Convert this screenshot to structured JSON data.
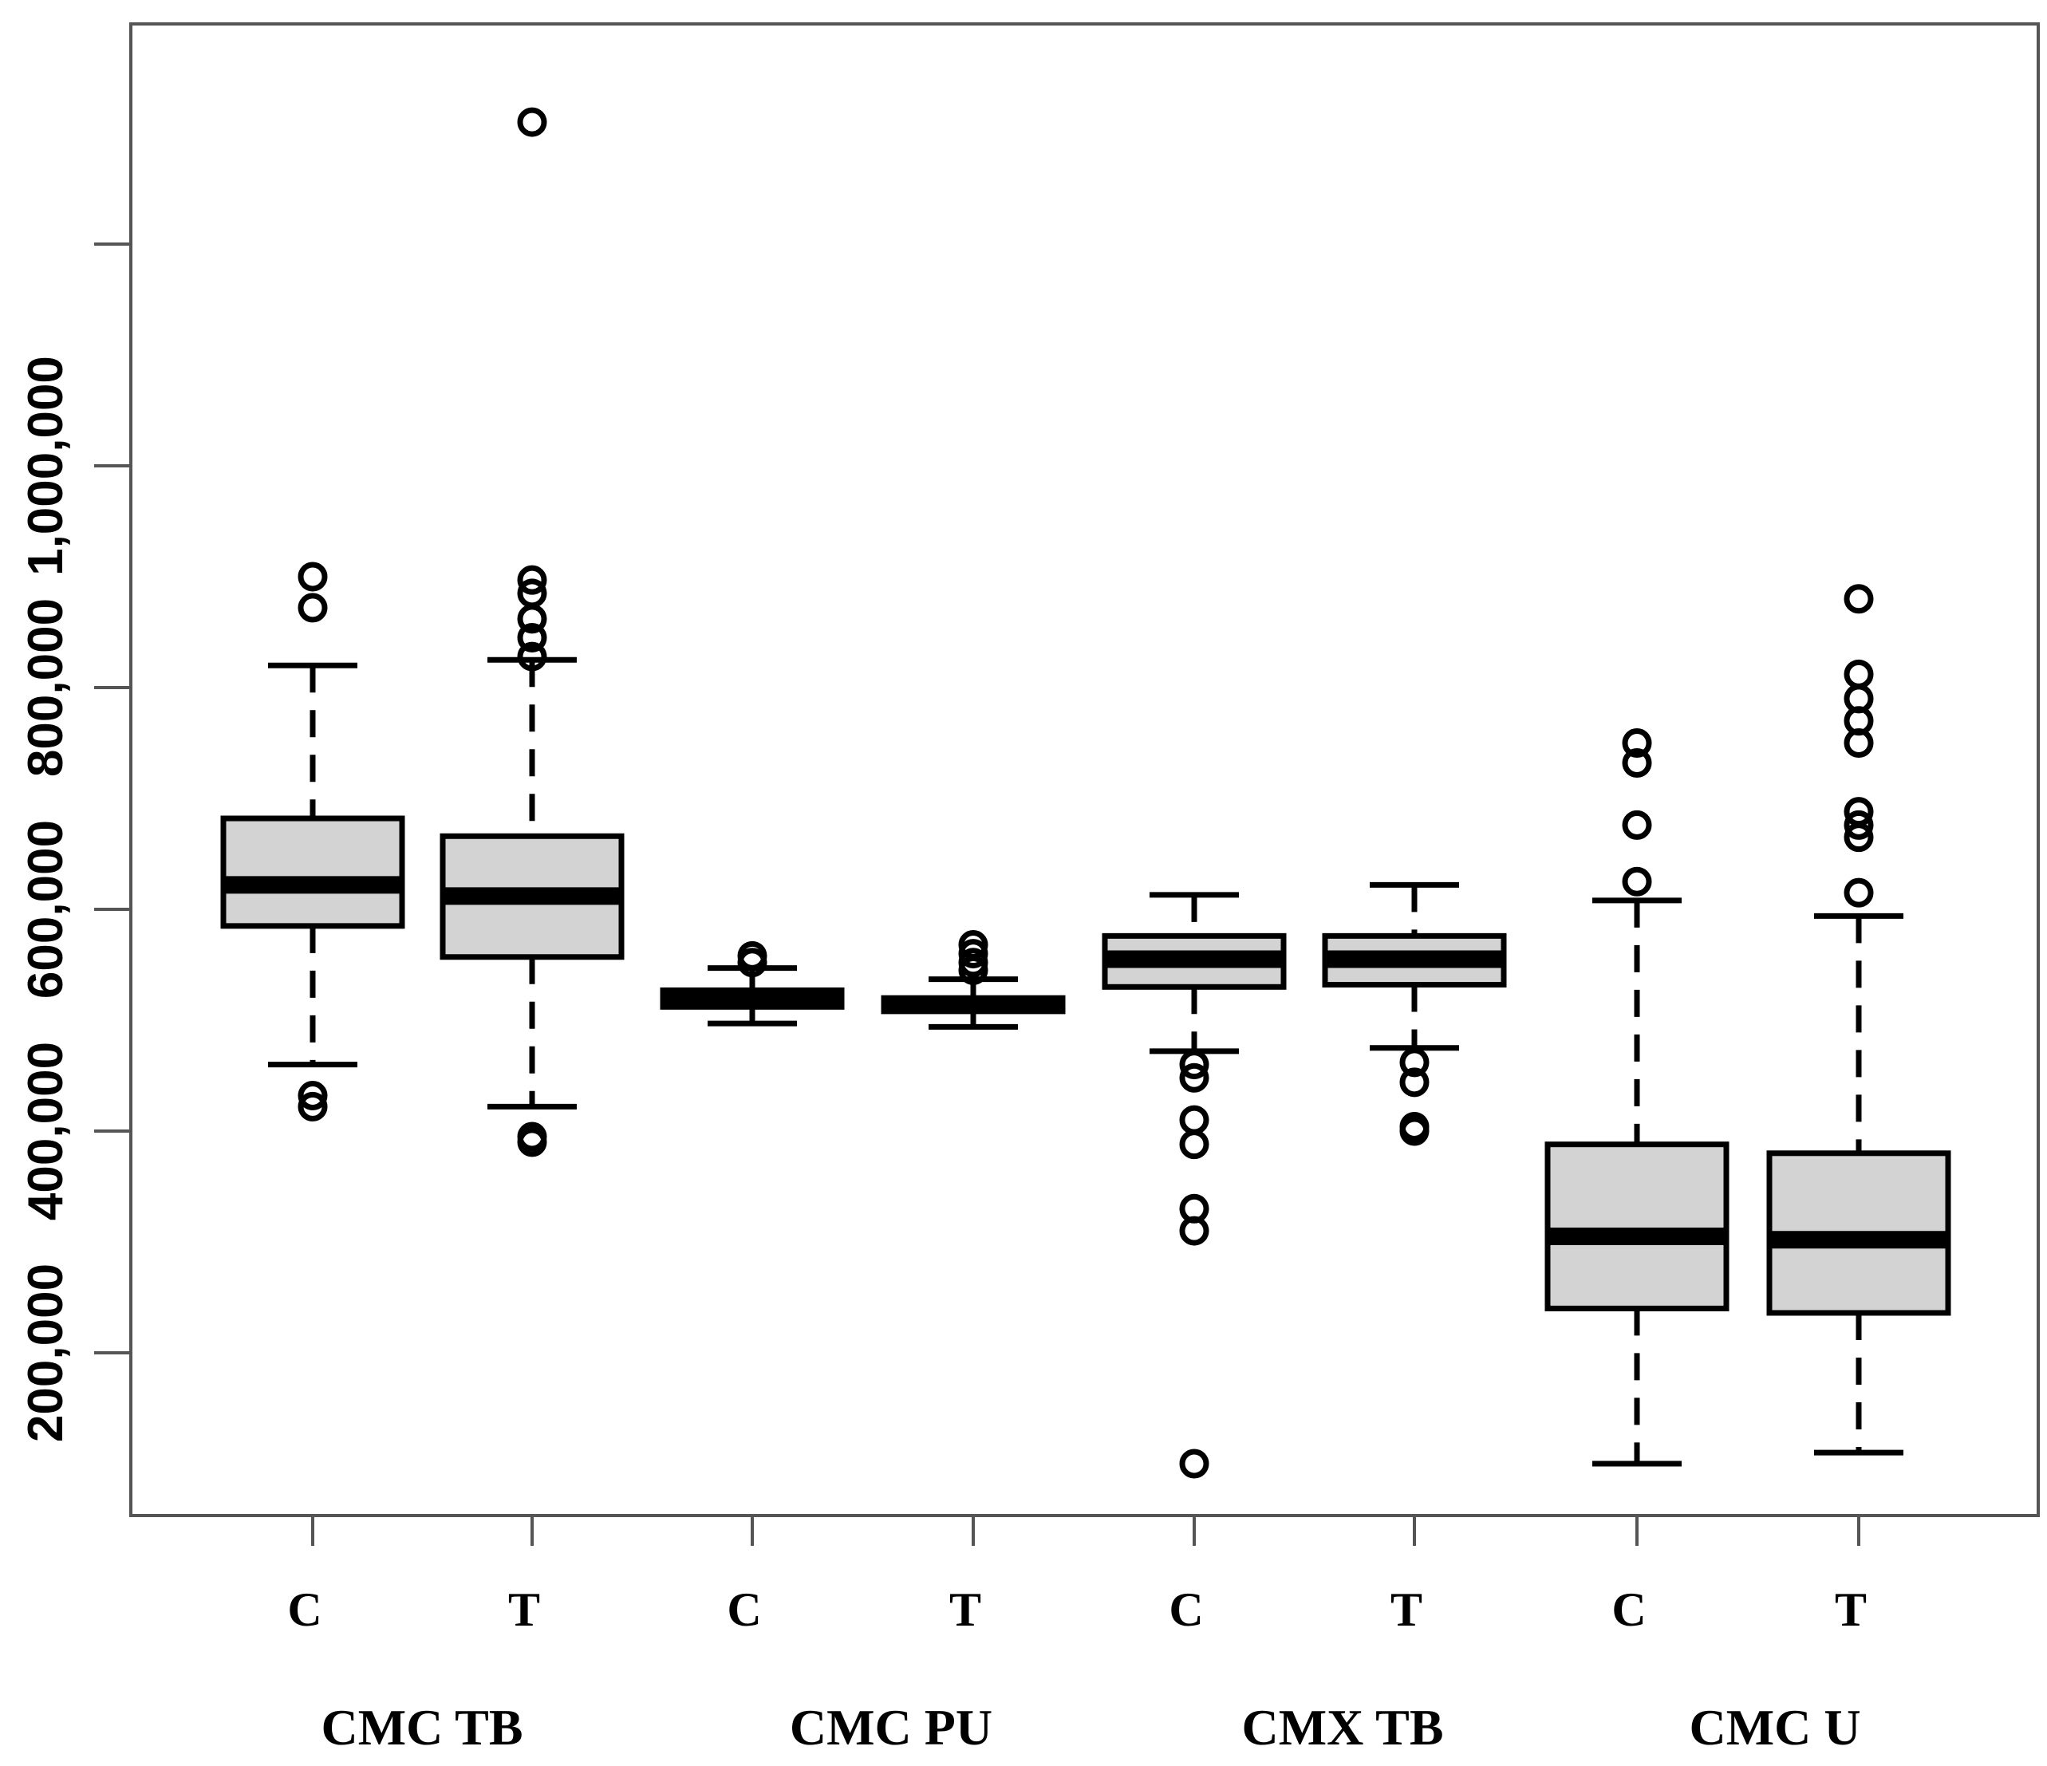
{
  "chart_data": {
    "type": "box",
    "title": "",
    "xlabel": "",
    "ylabel": "",
    "ylim": [
      50000,
      1400000
    ],
    "y_ticks": [
      200000,
      400000,
      600000,
      800000,
      1000000,
      1200000
    ],
    "y_tick_labels": [
      "200,000",
      "400,000",
      "600,000",
      "800,000",
      "1,000,000",
      ""
    ],
    "grid": false,
    "colors": {
      "box_fill": "#d3d3d3",
      "stroke": "#000000"
    },
    "groups": [
      {
        "name": "CMC TB",
        "categories": [
          "C",
          "T"
        ]
      },
      {
        "name": "CMC PU",
        "categories": [
          "C",
          "T"
        ]
      },
      {
        "name": "CMX TB",
        "categories": [
          "C",
          "T"
        ]
      },
      {
        "name": "CMC U",
        "categories": [
          "C",
          "T"
        ]
      }
    ],
    "boxes": [
      {
        "group": "CMC TB",
        "label": "C",
        "whisker_low": 460000,
        "q1": 585000,
        "median": 622000,
        "q3": 682000,
        "whisker_high": 820000,
        "outliers": [
          900000,
          872000,
          432000,
          422000
        ]
      },
      {
        "group": "CMC TB",
        "label": "T",
        "whisker_low": 422000,
        "q1": 557000,
        "median": 612000,
        "q3": 666000,
        "whisker_high": 825000,
        "outliers": [
          1310000,
          897000,
          885000,
          862000,
          845000,
          828000,
          395000,
          390000
        ]
      },
      {
        "group": "CMC PU",
        "label": "C",
        "whisker_low": 497000,
        "q1": 512000,
        "median": 518000,
        "q3": 527000,
        "whisker_high": 547000,
        "outliers": [
          558000,
          552000
        ]
      },
      {
        "group": "CMC PU",
        "label": "T",
        "whisker_low": 494000,
        "q1": 508000,
        "median": 514000,
        "q3": 520000,
        "whisker_high": 537000,
        "outliers": [
          568000,
          560000,
          552000,
          545000
        ]
      },
      {
        "group": "CMX TB",
        "label": "C",
        "whisker_low": 472000,
        "q1": 530000,
        "median": 555000,
        "q3": 576000,
        "whisker_high": 613000,
        "outliers": [
          460000,
          448000,
          410000,
          388000,
          330000,
          310000,
          100000
        ]
      },
      {
        "group": "CMX TB",
        "label": "T",
        "whisker_low": 475000,
        "q1": 532000,
        "median": 555000,
        "q3": 576000,
        "whisker_high": 622000,
        "outliers": [
          462000,
          444000,
          404000,
          400000
        ]
      },
      {
        "group": "CMC U",
        "label": "C",
        "whisker_low": 100000,
        "q1": 240000,
        "median": 305000,
        "q3": 388000,
        "whisker_high": 608000,
        "outliers": [
          750000,
          732000,
          676000,
          625000
        ]
      },
      {
        "group": "CMC U",
        "label": "T",
        "whisker_low": 110000,
        "q1": 236000,
        "median": 302000,
        "q3": 380000,
        "whisker_high": 594000,
        "outliers": [
          880000,
          812000,
          790000,
          770000,
          750000,
          688000,
          676000,
          665000,
          615000
        ]
      }
    ]
  }
}
